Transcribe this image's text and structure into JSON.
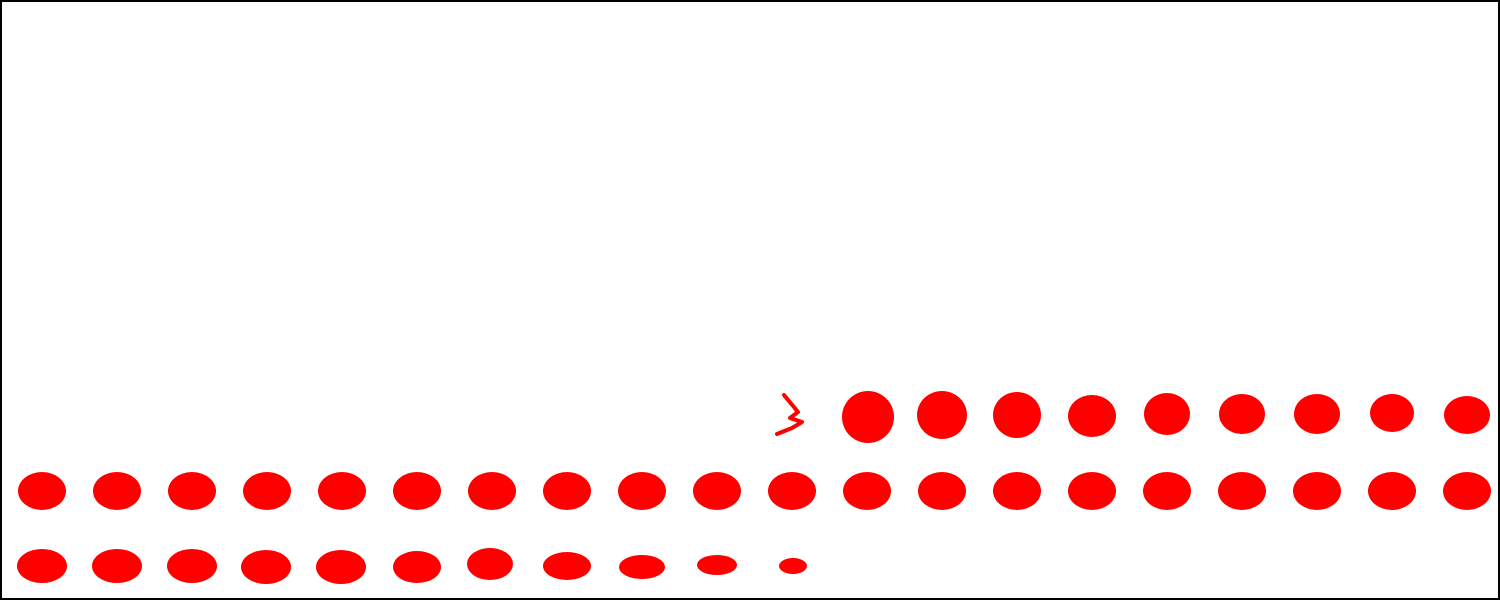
{
  "colors": {
    "background": "#ffffff",
    "border": "#000000",
    "dot": "#ff0000"
  },
  "sequence": {
    "total_dots": 40,
    "shape": "dot",
    "partial_marker": "chevron"
  }
}
